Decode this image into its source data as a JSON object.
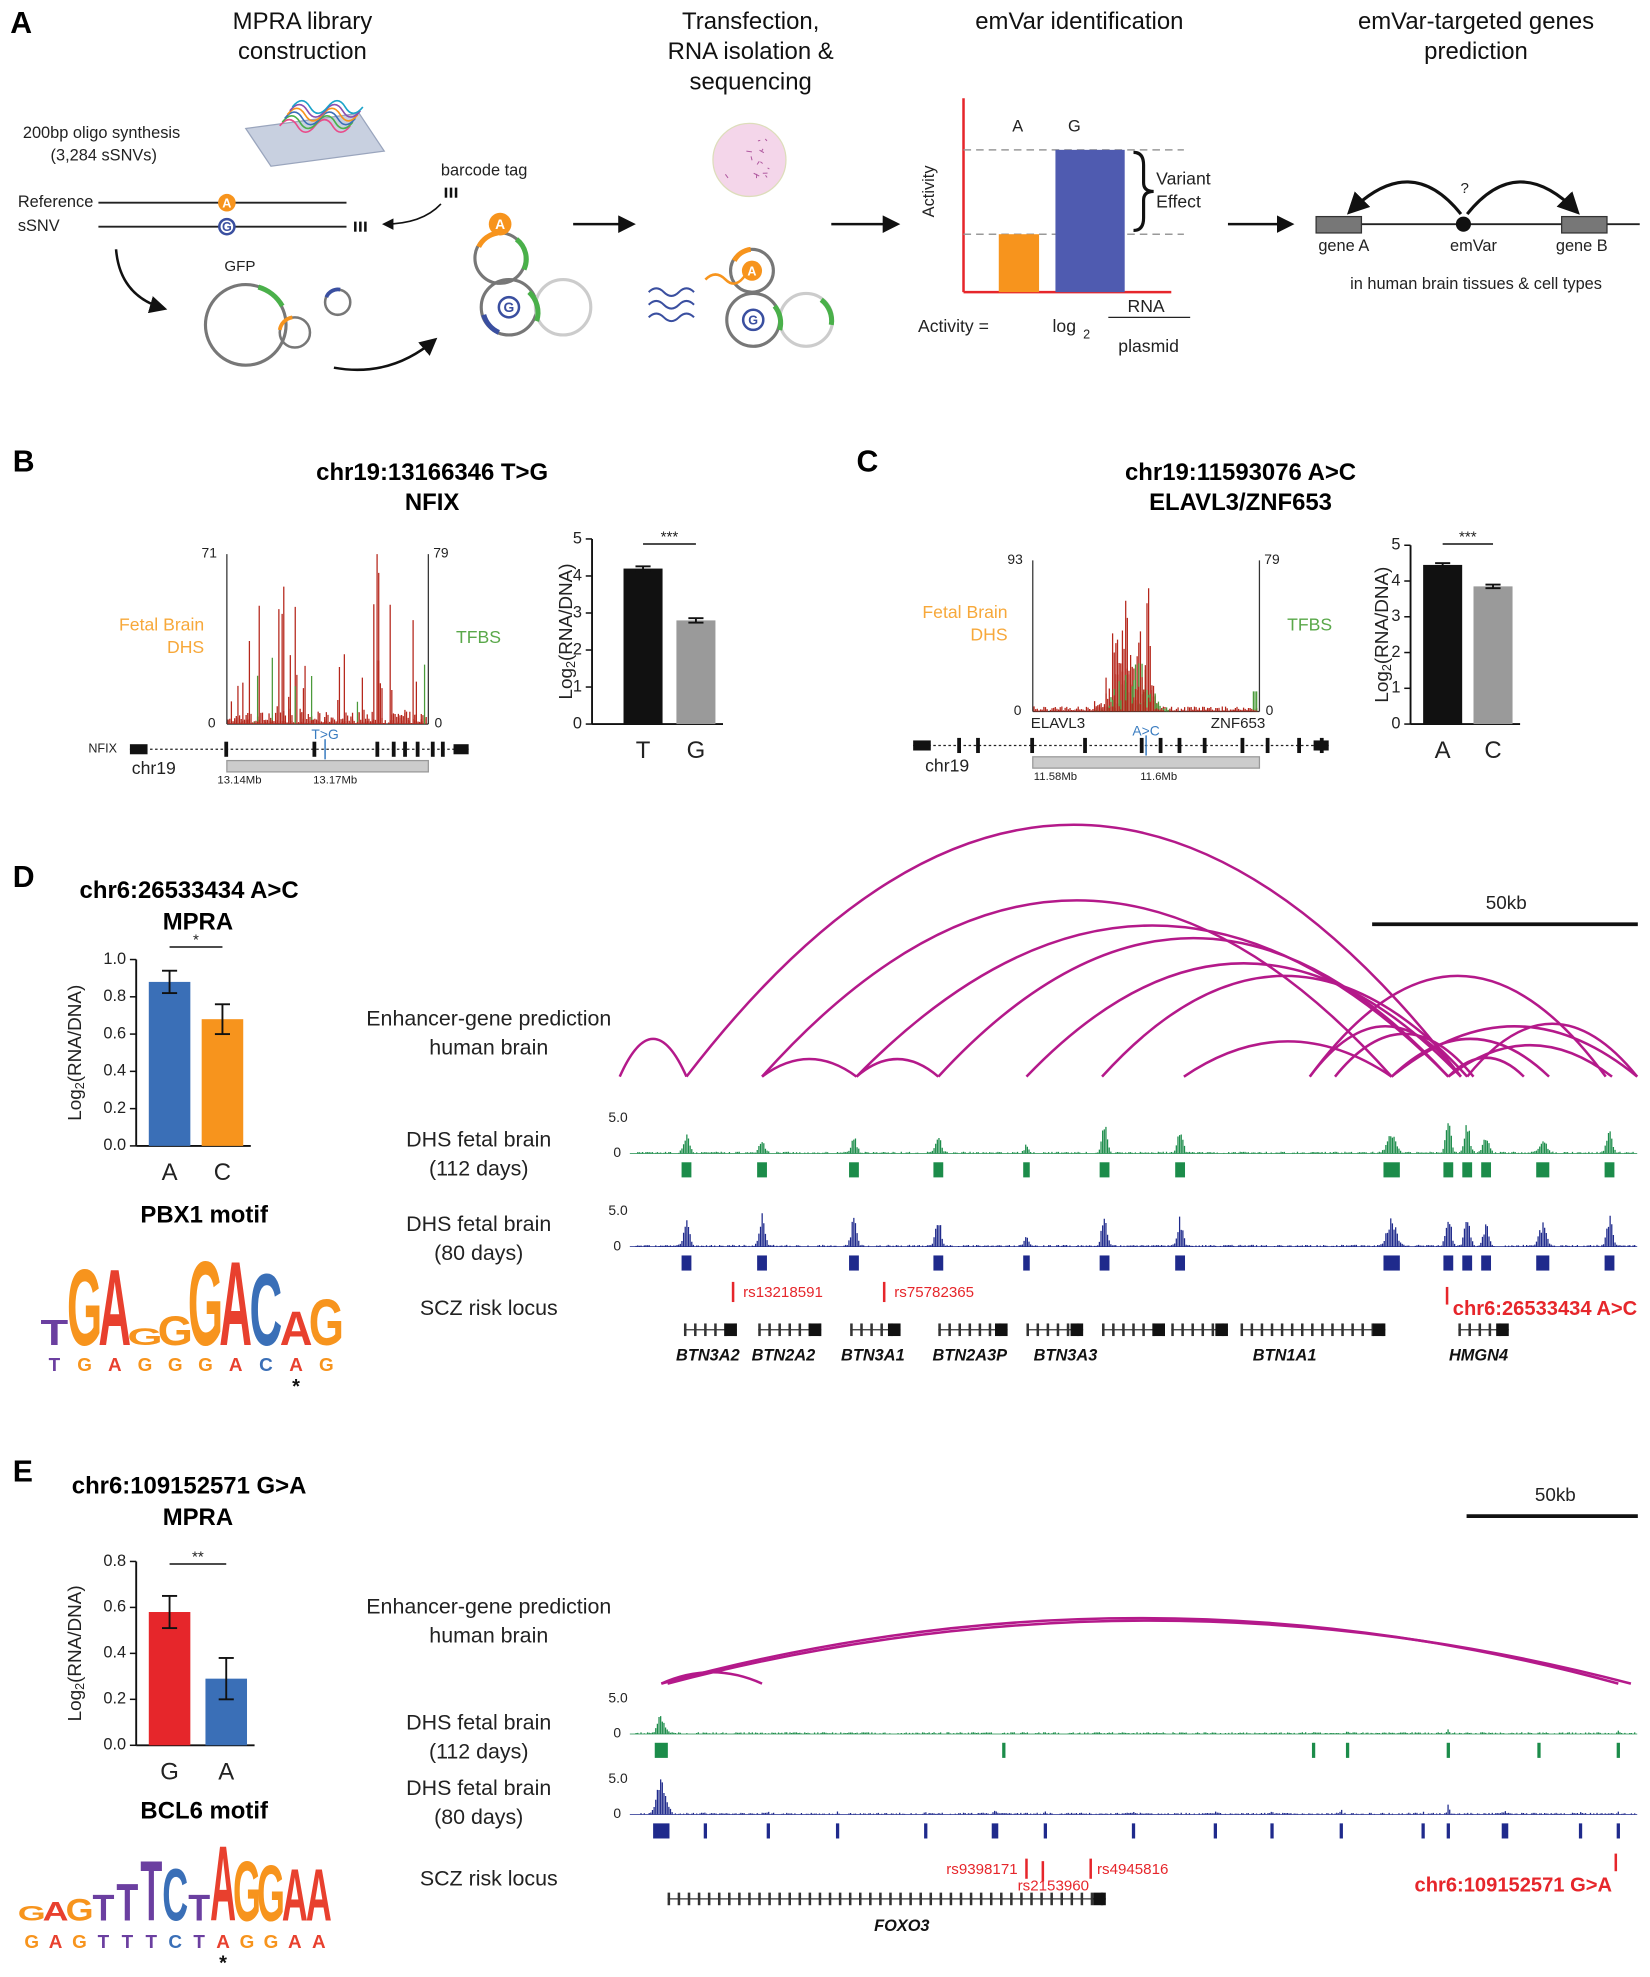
{
  "panel_labels": [
    "A",
    "B",
    "C",
    "D",
    "E"
  ],
  "A": {
    "steps": [
      [
        "MPRA library",
        "construction"
      ],
      [
        "Transfection,",
        "RNA isolation &",
        "sequencing"
      ],
      [
        "emVar identification"
      ],
      [
        "emVar-targeted genes",
        "prediction"
      ]
    ],
    "library": {
      "oligo": "200bp oligo synthesis",
      "count": "(3,284 sSNVs)",
      "reference": "Reference",
      "ssnv": "sSNV",
      "barcode": "barcode tag",
      "gfp": "GFP",
      "alleles": [
        "A",
        "G"
      ]
    },
    "emvar": {
      "bars": [
        "A",
        "G"
      ],
      "y_label": "Activity",
      "effect": [
        "Variant",
        "Effect"
      ],
      "formula": {
        "lhs": "Activity =",
        "log": "log",
        "base": "2",
        "numerator": "RNA",
        "denominator": "plasmid"
      }
    },
    "prediction": {
      "gene_a": "gene A",
      "variant": "emVar",
      "gene_b": "gene B",
      "question": "?",
      "note": "in human brain tissues & cell types"
    }
  },
  "B": {
    "title": [
      "chr19:13166346 T>G",
      "NFIX"
    ],
    "track": {
      "left_max": 71,
      "left_min": 0,
      "right_max": 79,
      "right_min": 0,
      "left_label": [
        "Fetal Brain",
        "DHS"
      ],
      "right_label": "TFBS",
      "variant": "T>G",
      "genes": [
        "NFIX"
      ],
      "chrom": "chr19",
      "coords": [
        "13.14Mb",
        "13.17Mb"
      ]
    },
    "bar_chart": {
      "type": "bar",
      "y_label": [
        "Log",
        "2",
        "(RNA/DNA)"
      ],
      "categories": [
        "T",
        "G"
      ],
      "values": [
        4.2,
        2.8
      ],
      "errors": [
        0.06,
        0.06
      ],
      "colors": [
        "#111111",
        "#9a9a9a"
      ],
      "ylim": [
        0,
        5
      ],
      "yticks": [
        0,
        1,
        2,
        3,
        4,
        5
      ],
      "significance": "***"
    }
  },
  "C": {
    "title": [
      "chr19:11593076 A>C",
      "ELAVL3/ZNF653"
    ],
    "track": {
      "left_max": 93,
      "left_min": 0,
      "right_max": 79,
      "right_min": 0,
      "left_label": [
        "Fetal Brain",
        "DHS"
      ],
      "right_label": "TFBS",
      "variant": "A>C",
      "genes": [
        "ELAVL3",
        "ZNF653"
      ],
      "chrom": "chr19",
      "coords": [
        "11.58Mb",
        "11.6Mb"
      ]
    },
    "bar_chart": {
      "type": "bar",
      "y_label": [
        "Log",
        "2",
        "(RNA/DNA)"
      ],
      "categories": [
        "A",
        "C"
      ],
      "values": [
        4.45,
        3.85
      ],
      "errors": [
        0.05,
        0.05
      ],
      "colors": [
        "#111111",
        "#9a9a9a"
      ],
      "ylim": [
        0,
        5
      ],
      "yticks": [
        0,
        1,
        2,
        3,
        4,
        5
      ],
      "significance": "***"
    }
  },
  "D": {
    "title": [
      "chr6:26533434 A>C",
      "MPRA"
    ],
    "bar_chart": {
      "type": "bar",
      "y_label": [
        "Log",
        "2",
        "(RNA/DNA)"
      ],
      "categories": [
        "A",
        "C"
      ],
      "values": [
        0.88,
        0.68
      ],
      "errors": [
        0.06,
        0.08
      ],
      "colors": [
        "#3a6fb7",
        "#f7941d"
      ],
      "ylim": [
        0,
        1
      ],
      "yticks": [
        {
          "value": 0,
          "label": "0.0"
        },
        0.2,
        0.4,
        0.6,
        0.8,
        {
          "value": 1,
          "label": "1.0"
        }
      ],
      "significance": "*"
    },
    "motif": {
      "title": "PBX1 motif",
      "sequence": [
        "T",
        "G",
        "A",
        "G",
        "G",
        "G",
        "A",
        "C",
        "A",
        "G"
      ],
      "marker": "*"
    },
    "browser": {
      "scale": "50kb",
      "arc_label": [
        "Enhancer-gene prediction",
        "human brain"
      ],
      "tracks": [
        {
          "label": [
            "DHS fetal brain",
            "(112 days)"
          ],
          "max": {
            "value": 5,
            "label": "5.0"
          },
          "min": 0
        },
        {
          "label": [
            "DHS fetal brain",
            "(80 days)"
          ],
          "max": {
            "value": 5,
            "label": "5.0"
          },
          "min": 0
        }
      ],
      "risk_label": "SCZ risk locus",
      "snps": [
        "rs13218591",
        "rs75782365"
      ],
      "variant": "chr6:26533434 A>C",
      "genes": [
        "BTN3A2",
        "BTN2A2",
        "BTN3A1",
        "BTN2A3P",
        "BTN3A3",
        "BTN1A1",
        "HMGN4"
      ]
    }
  },
  "E": {
    "title": [
      "chr6:109152571 G>A",
      "MPRA"
    ],
    "bar_chart": {
      "type": "bar",
      "y_label": [
        "Log",
        "2",
        "(RNA/DNA)"
      ],
      "categories": [
        "G",
        "A"
      ],
      "values": [
        0.58,
        0.29
      ],
      "errors": [
        0.07,
        0.09
      ],
      "colors": [
        "#e6262b",
        "#3a6fb7"
      ],
      "ylim": [
        0,
        0.8
      ],
      "yticks": [
        {
          "value": 0,
          "label": "0.0"
        },
        0.2,
        0.4,
        0.6,
        0.8
      ],
      "significance": "**"
    },
    "motif": {
      "title": "BCL6 motif",
      "sequence": [
        "G",
        "A",
        "G",
        "T",
        "T",
        "T",
        "C",
        "T",
        "A",
        "G",
        "G",
        "A",
        "A"
      ],
      "marker": "*"
    },
    "browser": {
      "scale": "50kb",
      "arc_label": [
        "Enhancer-gene prediction",
        "human brain"
      ],
      "tracks": [
        {
          "label": [
            "DHS fetal brain",
            "(112 days)"
          ],
          "max": {
            "value": 5,
            "label": "5.0"
          },
          "min": 0
        },
        {
          "label": [
            "DHS fetal brain",
            "(80 days)"
          ],
          "max": {
            "value": 5,
            "label": "5.0"
          },
          "min": 0
        }
      ],
      "risk_label": "SCZ risk locus",
      "snps": [
        "rs9398171",
        "rs2153960",
        "rs4945816"
      ],
      "variant": "chr6:109152571 G>A",
      "genes": [
        "FOXO3"
      ]
    }
  }
}
